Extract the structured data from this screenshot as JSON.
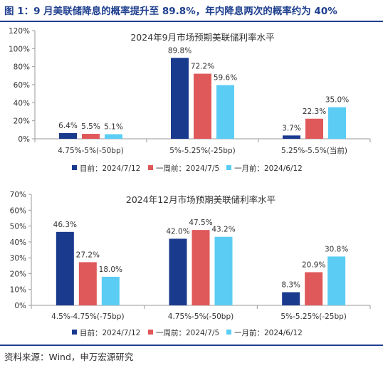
{
  "figure_title": "图 1：9 月美联储降息的概率提升至 89.8%，年内降息两次的概率约为 40%",
  "source": "资料来源：Wind，申万宏源研究",
  "colors": {
    "current": "#1a3a8e",
    "one_week": "#e0595a",
    "one_month": "#5bcdf5",
    "axis": "#999999",
    "title": "#1f3f8f"
  },
  "chart_data": [
    {
      "type": "bar",
      "title": "2024年9月市场预期美联储利率水平",
      "categories": [
        "4.75%-5%(-50bp)",
        "5%-5.25%(-25bp)",
        "5.25%-5.5%(当前)"
      ],
      "ylim": [
        0,
        120
      ],
      "yticks": [
        "0%",
        "20%",
        "40%",
        "60%",
        "80%",
        "100%",
        "120%"
      ],
      "ytick_values": [
        0,
        20,
        40,
        60,
        80,
        100,
        120
      ],
      "legend_position": "bottom",
      "series": [
        {
          "name": "目前：2024/7/12",
          "values": [
            6.4,
            89.8,
            3.7
          ],
          "labels": [
            "6.4%",
            "89.8%",
            "3.7%"
          ],
          "color": "#1a3a8e"
        },
        {
          "name": "一周前：2024/7/5",
          "values": [
            5.5,
            72.2,
            22.3
          ],
          "labels": [
            "5.5%",
            "72.2%",
            "22.3%"
          ],
          "color": "#e0595a"
        },
        {
          "name": "一月前：2024/6/12",
          "values": [
            5.1,
            59.6,
            35.0
          ],
          "labels": [
            "5.1%",
            "59.6%",
            "35.0%"
          ],
          "color": "#5bcdf5"
        }
      ]
    },
    {
      "type": "bar",
      "title": "2024年12月市场预期美联储利率水平",
      "categories": [
        "4.5%-4.75%(-75bp)",
        "4.75%-5%(-50bp)",
        "5%-5.25%(-25bp)"
      ],
      "ylim": [
        0,
        70
      ],
      "yticks": [
        "0%",
        "10%",
        "20%",
        "30%",
        "40%",
        "50%",
        "60%",
        "70%"
      ],
      "ytick_values": [
        0,
        10,
        20,
        30,
        40,
        50,
        60,
        70
      ],
      "legend_position": "bottom",
      "series": [
        {
          "name": "目前：2024/7/12",
          "values": [
            46.3,
            42.0,
            8.3
          ],
          "labels": [
            "46.3%",
            "42.0%",
            "8.3%"
          ],
          "color": "#1a3a8e"
        },
        {
          "name": "一周前：2024/7/5",
          "values": [
            27.2,
            47.5,
            20.9
          ],
          "labels": [
            "27.2%",
            "47.5%",
            "20.9%"
          ],
          "color": "#e0595a"
        },
        {
          "name": "一月前：2024/6/12",
          "values": [
            18.0,
            43.2,
            30.8
          ],
          "labels": [
            "18.0%",
            "43.2%",
            "30.8%"
          ],
          "color": "#5bcdf5"
        }
      ]
    }
  ]
}
